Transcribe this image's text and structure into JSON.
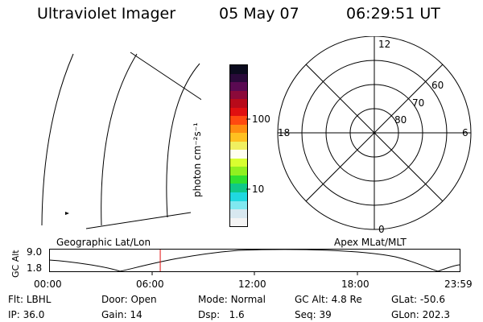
{
  "header": {
    "instrument": "Ultraviolet Imager",
    "date": "05 May 07",
    "time": "06:29:51 UT"
  },
  "colorbar": {
    "unit_label": "photon cm⁻²s⁻¹",
    "tick_labels": [
      "100",
      "10"
    ],
    "colors": [
      "#0b0b1e",
      "#2a0a3a",
      "#5a0a52",
      "#8b0a3a",
      "#b80a1a",
      "#e01010",
      "#ff4a10",
      "#ff8c10",
      "#ffc020",
      "#f0f060",
      "#fffff0",
      "#d8ff30",
      "#90f020",
      "#30e030",
      "#10c888",
      "#20d8e0",
      "#80e8f0",
      "#d8e8f0",
      "#f4f4f4"
    ]
  },
  "map": {
    "label": "Geographic Lat/Lon"
  },
  "polar": {
    "label": "Apex MLat/MLT",
    "mlt_labels": {
      "top": "12",
      "right": "6",
      "bottom": "0",
      "left": "18"
    },
    "lat_rings": [
      "60",
      "70",
      "80"
    ]
  },
  "timeline": {
    "ylabel": "GC Alt",
    "y_ticks": [
      "9.0",
      "1.8"
    ],
    "x_ticks": [
      "00:00",
      "06:00",
      "12:00",
      "18:00",
      "23:59"
    ],
    "current_hour": 6.497
  },
  "status": {
    "filter": {
      "label": "Flt:",
      "value": "LBHL"
    },
    "ip": {
      "label": "IP:",
      "value": "36.0"
    },
    "door": {
      "label": "Door:",
      "value": "Open"
    },
    "gain": {
      "label": "Gain:",
      "value": "14"
    },
    "mode": {
      "label": "Mode:",
      "value": "Normal"
    },
    "dsp": {
      "label": "Dsp:",
      "value": "1.6"
    },
    "gc_alt": {
      "label": "GC Alt:",
      "value": "4.8 Re"
    },
    "seq": {
      "label": "Seq:",
      "value": "39"
    },
    "glat": {
      "label": "GLat:",
      "value": "-50.6"
    },
    "glon": {
      "label": "GLon:",
      "value": "202.3"
    }
  }
}
